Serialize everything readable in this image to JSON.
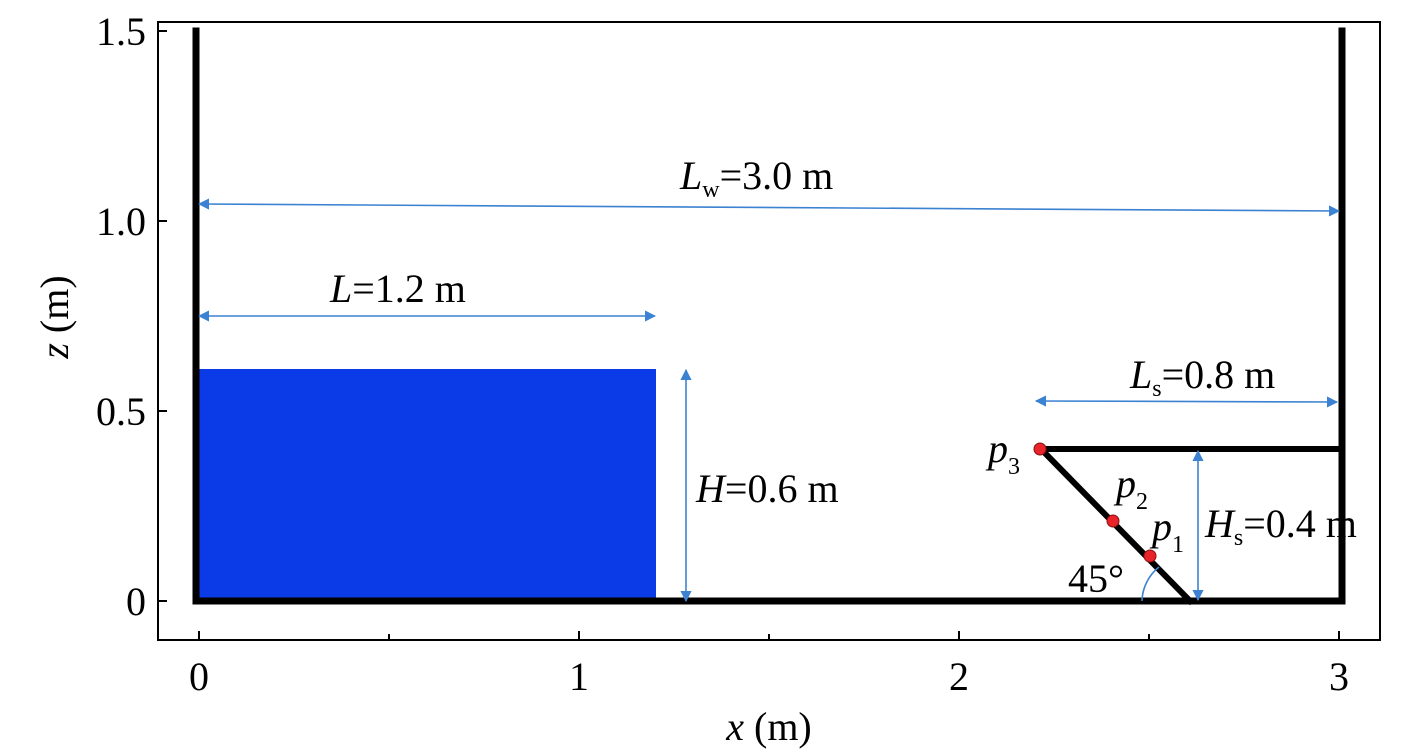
{
  "axes": {
    "x_title_var": "x",
    "x_title_unit": " (m)",
    "z_title_var": "z",
    "z_title_unit": " (m)",
    "x_ticks": [
      "0",
      "1",
      "2",
      "3"
    ],
    "z_ticks": [
      "0",
      "0.5",
      "1.0",
      "1.5"
    ]
  },
  "dimensions": {
    "tank_length": {
      "var": "L",
      "sub": "w",
      "value": "=3.0 m"
    },
    "water_length": {
      "var": "L",
      "sub": "",
      "value": "=1.2 m"
    },
    "water_height": {
      "var": "H",
      "sub": "",
      "value": "=0.6 m"
    },
    "structure_length": {
      "var": "L",
      "sub": "s",
      "value": "=0.8 m"
    },
    "structure_height": {
      "var": "H",
      "sub": "s",
      "value": "=0.4 m"
    },
    "slope_angle": "45°"
  },
  "probes": [
    {
      "label": "p",
      "sub": "1"
    },
    {
      "label": "p",
      "sub": "2"
    },
    {
      "label": "p",
      "sub": "3"
    }
  ],
  "colors": {
    "water": "#0a3be6",
    "dimension_line": "#3c82d2",
    "wall": "#000000",
    "probe": "#e8232a"
  }
}
